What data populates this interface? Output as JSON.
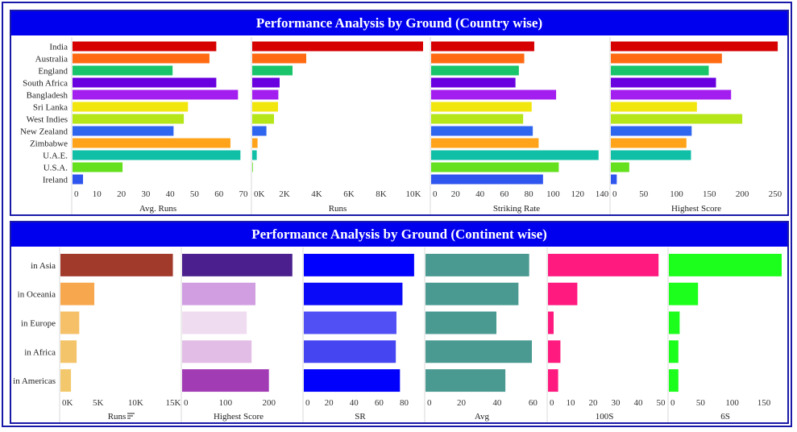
{
  "chart_data": [
    {
      "type": "bar",
      "title": "Performance Analysis by Ground (Country wise)",
      "categories": [
        "India",
        "Australia",
        "England",
        "South Africa",
        "Bangladesh",
        "Sri Lanka",
        "West Indies",
        "New Zealand",
        "Zimbabwe",
        "U.A.E.",
        "U.S.A.",
        "Ireland"
      ],
      "colors": [
        "#d60000",
        "#ff6a13",
        "#19c46a",
        "#6a00e0",
        "#a31ff0",
        "#f2e60f",
        "#b4e619",
        "#2f66ef",
        "#ffa31a",
        "#11bfa6",
        "#64e01f",
        "#2f55ef"
      ],
      "panels": [
        {
          "xlabel": "Avg. Runs",
          "xlim": [
            0,
            70
          ],
          "ticks": [
            0,
            10,
            20,
            30,
            40,
            50,
            60,
            70
          ],
          "tick_labels": [
            "0",
            "10",
            "20",
            "30",
            "40",
            "50",
            "60",
            "70"
          ],
          "values": [
            58.9,
            56.1,
            41.0,
            58.9,
            67.8,
            47.3,
            45.6,
            41.4,
            64.7,
            68.8,
            20.5,
            4.3
          ]
        },
        {
          "xlabel": "Runs",
          "xlim": [
            0,
            10600
          ],
          "ticks": [
            0,
            2000,
            4000,
            6000,
            8000,
            10000
          ],
          "tick_labels": [
            "0K",
            "2K",
            "4K",
            "6K",
            "8K",
            "10K"
          ],
          "values": [
            10600,
            3350,
            2500,
            1700,
            1620,
            1600,
            1350,
            880,
            330,
            280,
            40,
            0
          ]
        },
        {
          "xlabel": "Striking Rate",
          "xlim": [
            0,
            140
          ],
          "ticks": [
            0,
            20,
            40,
            60,
            80,
            100,
            120,
            140
          ],
          "tick_labels": [
            "0",
            "20",
            "40",
            "60",
            "80",
            "100",
            "120",
            "140"
          ],
          "values": [
            84.5,
            76.3,
            71.9,
            69.1,
            102.4,
            82.4,
            75.4,
            83.3,
            88.1,
            137.2,
            104.6,
            91.7
          ]
        },
        {
          "xlabel": "Highest Score",
          "xlim": [
            0,
            260
          ],
          "ticks": [
            0,
            50,
            100,
            150,
            200,
            250
          ],
          "tick_labels": [
            "0",
            "50",
            "100",
            "150",
            "200",
            "250"
          ],
          "values": [
            254,
            169,
            149,
            160,
            183,
            131,
            200,
            123,
            115,
            122,
            28,
            9
          ]
        }
      ]
    },
    {
      "type": "bar",
      "title": "Performance Analysis by Ground (Continent wise)",
      "categories": [
        "in Asia",
        "in Oceania",
        "in Europe",
        "in Africa",
        "in Americas"
      ],
      "panels": [
        {
          "xlabel": "Runs",
          "xlim": [
            0,
            15000
          ],
          "ticks": [
            0,
            5000,
            10000,
            15000
          ],
          "tick_labels": [
            "0K",
            "5K",
            "10K",
            "15K"
          ],
          "values": [
            14950,
            4500,
            2500,
            2150,
            1400
          ],
          "colors": [
            "#a23a2c",
            "#f7a84e",
            "#f6c068",
            "#f4c46a",
            "#f3c86c"
          ],
          "sort_icon": "sort-icon"
        },
        {
          "xlabel": "Highest Score",
          "xlim": [
            0,
            260
          ],
          "ticks": [
            0,
            100,
            200
          ],
          "tick_labels": [
            "0",
            "100",
            "200"
          ],
          "values": [
            254,
            169,
            149,
            160,
            200
          ],
          "colors": [
            "#4b1f8e",
            "#d19fe1",
            "#f0dcf0",
            "#e2bde6",
            "#a23cb4"
          ]
        },
        {
          "xlabel": "SR",
          "xlim": [
            0,
            90
          ],
          "ticks": [
            0,
            20,
            40,
            60,
            80
          ],
          "tick_labels": [
            "0",
            "20",
            "40",
            "60",
            "80"
          ],
          "values": [
            88.0,
            78.7,
            73.9,
            73.4,
            76.7
          ],
          "colors": [
            "#0000ff",
            "#0a0af8",
            "#5050f5",
            "#4545f2",
            "#0000fc"
          ]
        },
        {
          "xlabel": "Avg",
          "xlim": [
            0,
            63
          ],
          "ticks": [
            0,
            20,
            40,
            60
          ],
          "tick_labels": [
            "0",
            "20",
            "40",
            "60"
          ],
          "values": [
            57.9,
            51.9,
            39.6,
            59.4,
            44.6
          ],
          "colors": [
            "#4a9a92",
            "#4a9a92",
            "#4a9a92",
            "#4a9a92",
            "#4a9a92"
          ]
        },
        {
          "xlabel": "100S",
          "xlim": [
            0,
            50
          ],
          "ticks": [
            0,
            10,
            20,
            30,
            40,
            50
          ],
          "tick_labels": [
            "0",
            "10",
            "20",
            "30",
            "40",
            "50"
          ],
          "values": [
            49,
            13,
            2.5,
            5.5,
            4.5
          ],
          "colors": [
            "#ff1a80",
            "#ff1a80",
            "#ff1a80",
            "#ff1a80",
            "#ff1a80"
          ]
        },
        {
          "xlabel": "6S",
          "xlim": [
            0,
            178
          ],
          "ticks": [
            0,
            50,
            100,
            150
          ],
          "tick_labels": [
            "0",
            "50",
            "100",
            "150"
          ],
          "values": [
            178,
            46,
            17,
            15,
            15
          ],
          "colors": [
            "#1cff1c",
            "#1cff1c",
            "#1cff1c",
            "#1cff1c",
            "#1cff1c"
          ]
        }
      ]
    }
  ]
}
